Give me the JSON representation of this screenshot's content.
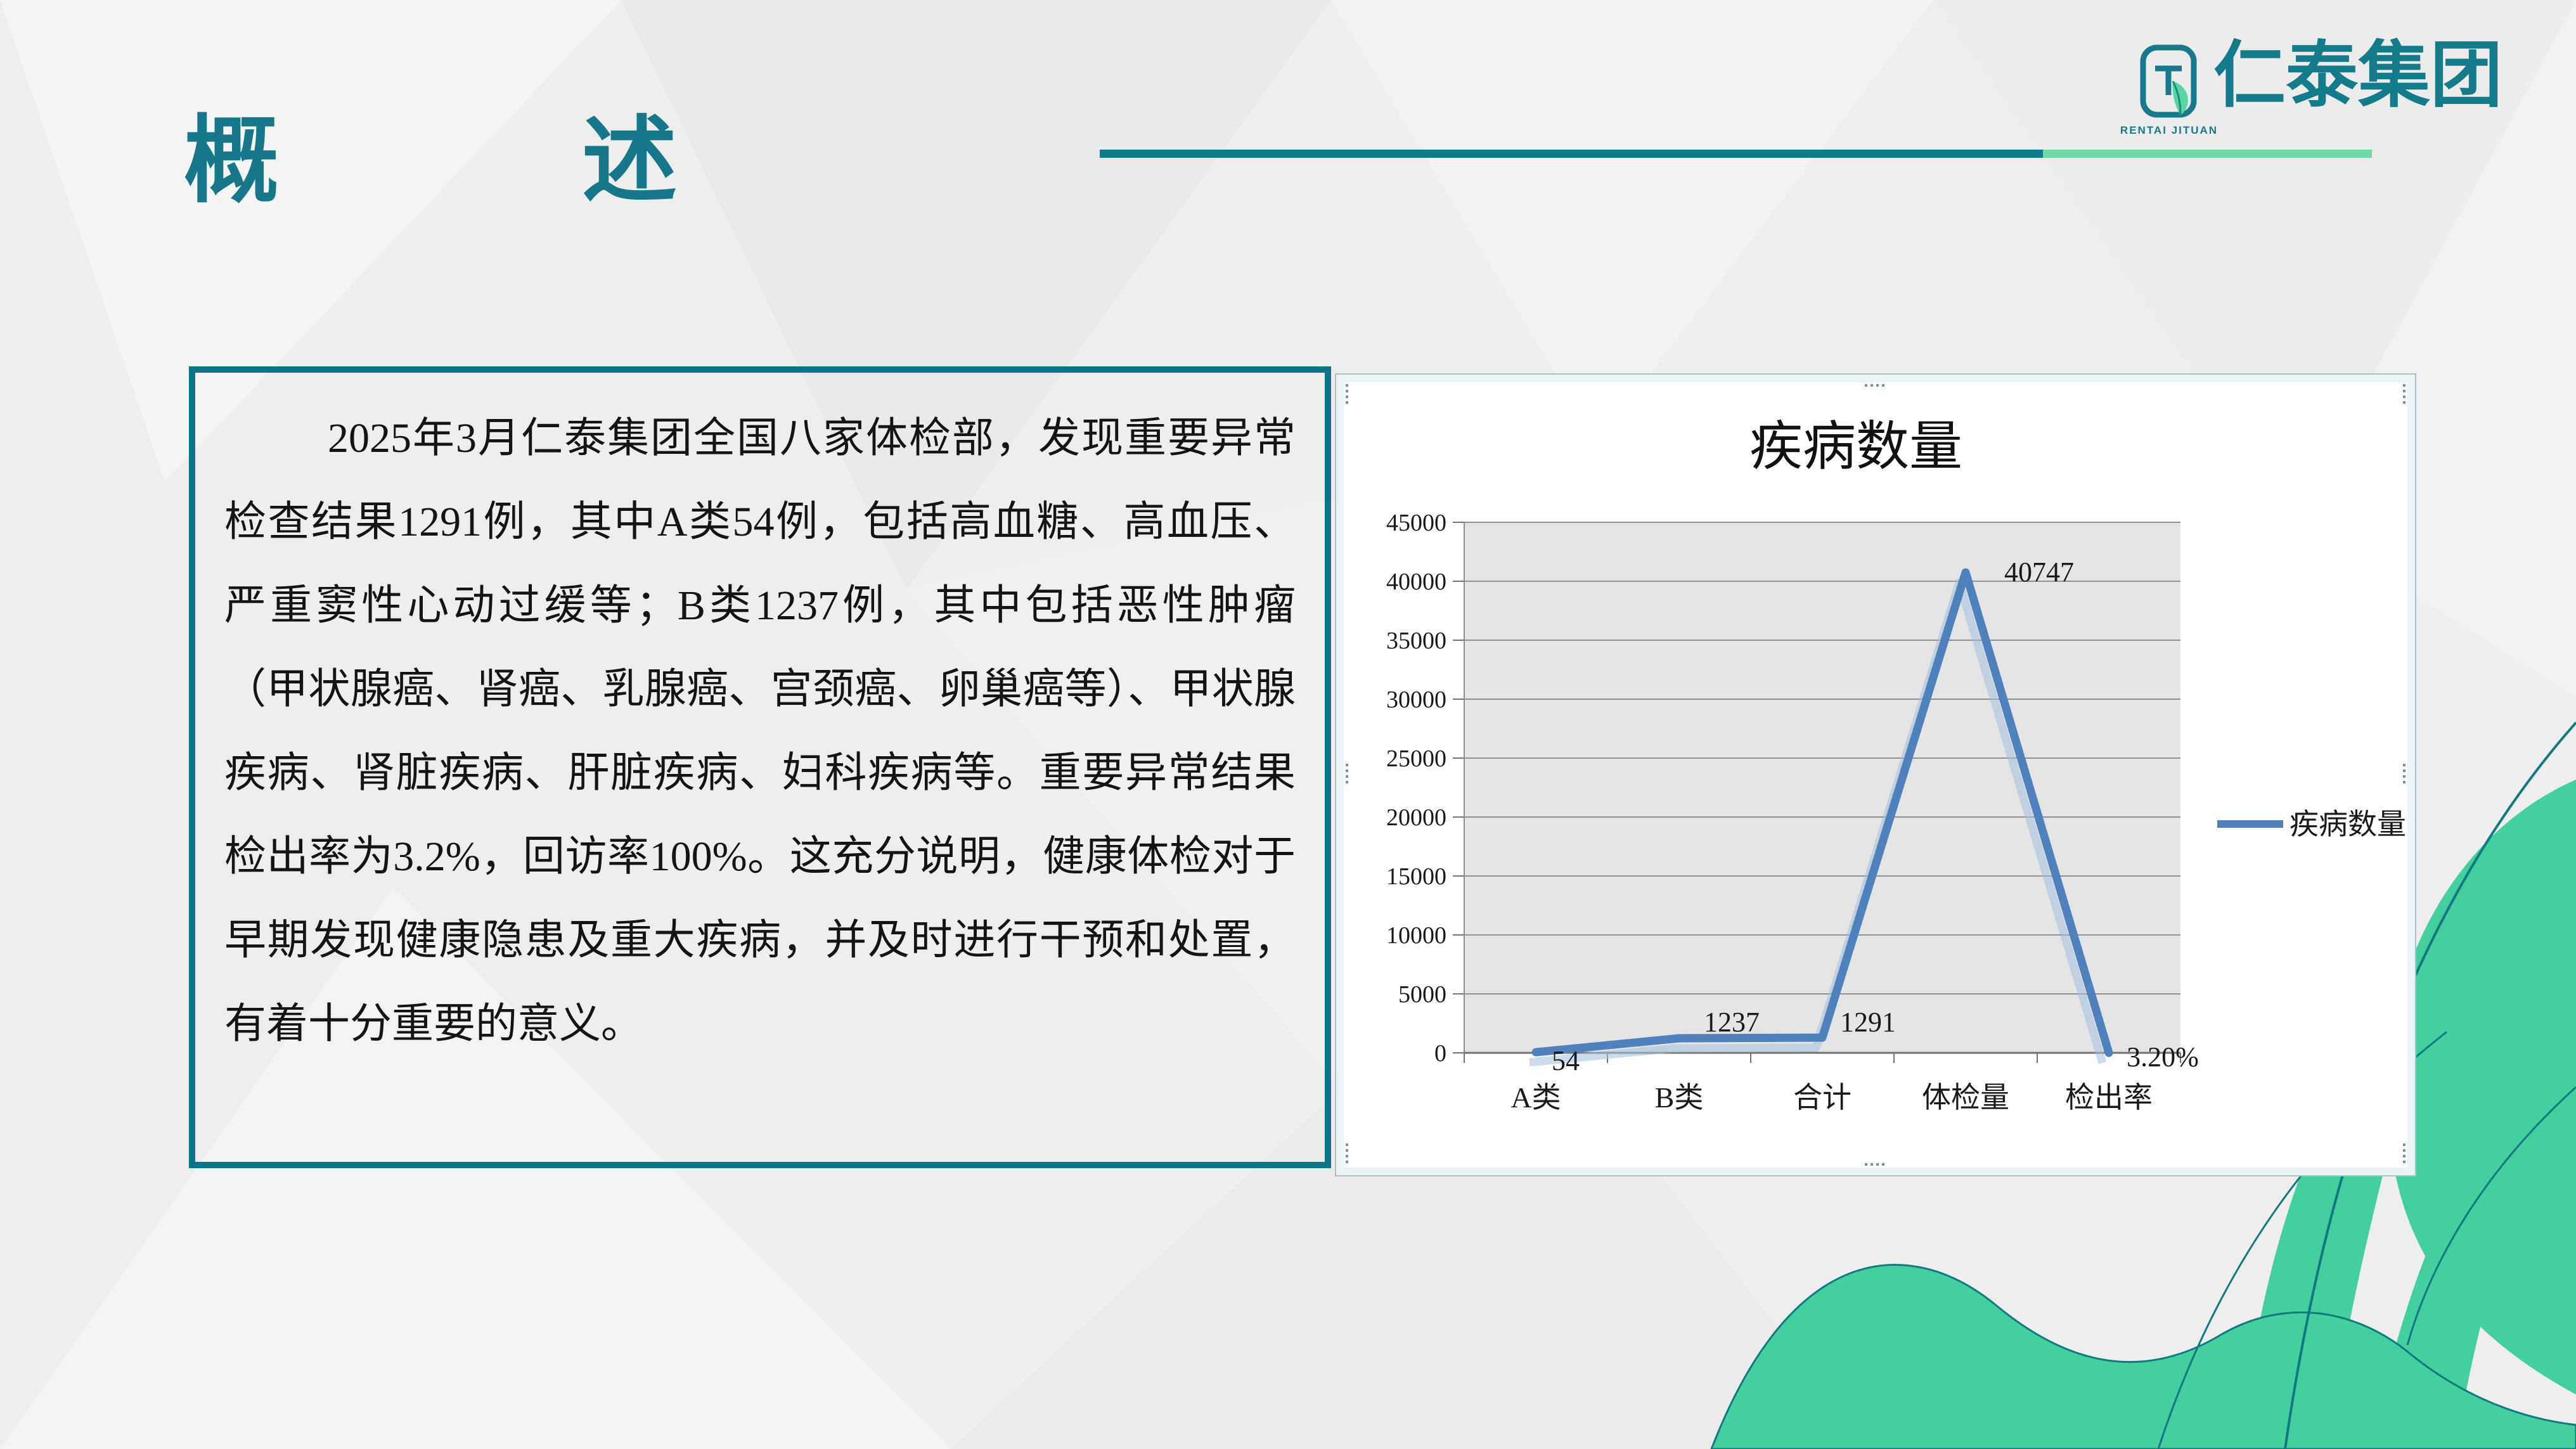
{
  "slide": {
    "header": {
      "title_left": "概",
      "title_right": "述"
    },
    "logo": {
      "company": "仁泰集团",
      "subtitle": "RENTAI JITUAN"
    },
    "overview": {
      "paragraph": "2025年3月仁泰集团全国八家体检部，发现重要异常检查结果1291例，其中A类54例，包括高血糖、高血压、严重窦性心动过缓等；B类1237例，其中包括恶性肿瘤（甲状腺癌、肾癌、乳腺癌、宫颈癌、卵巢癌等）、甲状腺疾病、肾脏疾病、肝脏疾病、妇科疾病等。重要异常结果检出率为3.2%，回访率100%。这充分说明，健康体检对于早期发现健康隐患及重大疾病，并及时进行干预和处置，有着十分重要的意义。"
    }
  },
  "chart_data": {
    "type": "line",
    "title": "疾病数量",
    "categories": [
      "A类",
      "B类",
      "合计",
      "体检量",
      "检出率"
    ],
    "series": [
      {
        "name": "疾病数量",
        "values": [
          54,
          1237,
          1291,
          40747,
          0.032
        ]
      }
    ],
    "data_labels": [
      "54",
      "1237",
      "1291",
      "40747",
      "3.20%"
    ],
    "xlabel": "",
    "ylabel": "",
    "ylim": [
      0,
      45000
    ],
    "ytick_step": 5000,
    "grid": true,
    "legend": {
      "label": "疾病数量",
      "position": "right"
    },
    "line_color": "#4f81bd",
    "line_shadow_color": "#a3bfdf",
    "plot_bg": "#e5e5e5",
    "grid_color": "#8f8f8f",
    "axis_color": "#737373",
    "text_color": "#1a1a1a"
  }
}
